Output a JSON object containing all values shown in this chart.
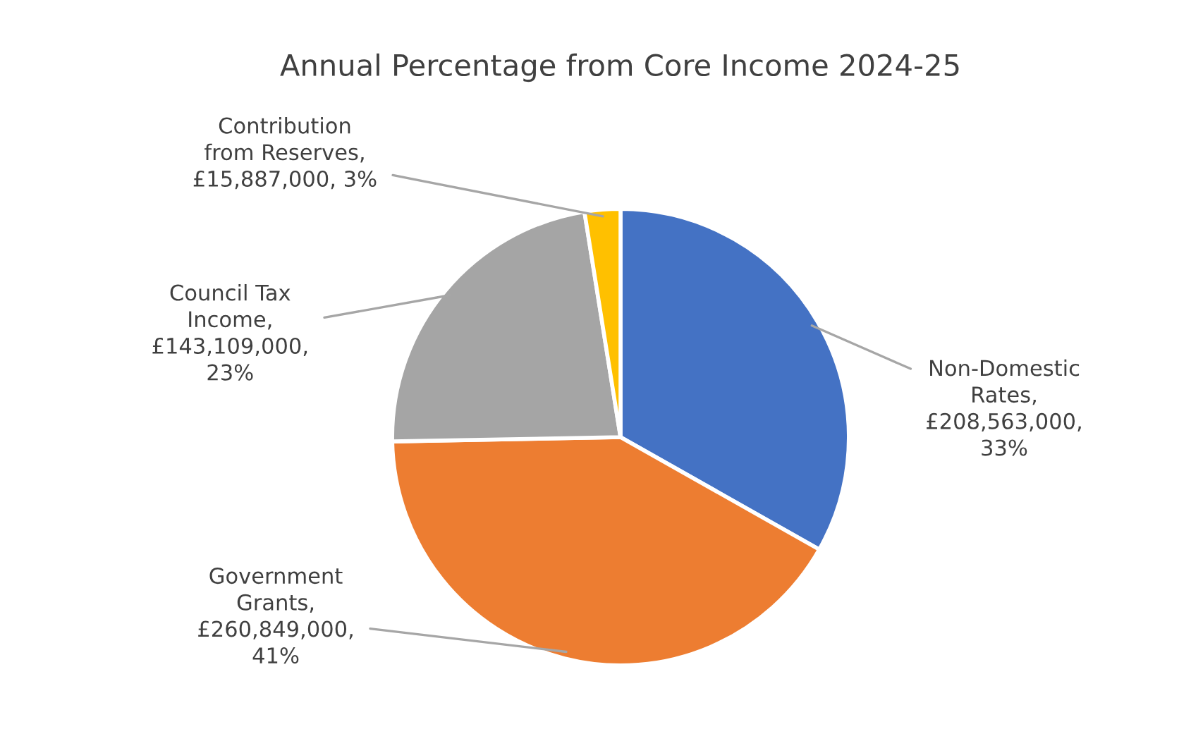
{
  "chart_data": {
    "type": "pie",
    "title": "Annual Percentage from Core Income 2024-25",
    "categories": [
      "Non-Domestic\nRates",
      "Government\nGrants",
      "Council Tax\nIncome",
      "Contribution\nfrom Reserves"
    ],
    "values": [
      208563000,
      260849000,
      143109000,
      15887000
    ],
    "value_labels": [
      ",\n£208,563,000,\n33%",
      ",\n£260,849,000,\n41%",
      ",\n£143,109,000,\n23%",
      ",\n£15,887,000, 3%"
    ],
    "colors": [
      "#4472c4",
      "#ed7d31",
      "#a5a5a5",
      "#ffc000"
    ],
    "legend": false
  }
}
